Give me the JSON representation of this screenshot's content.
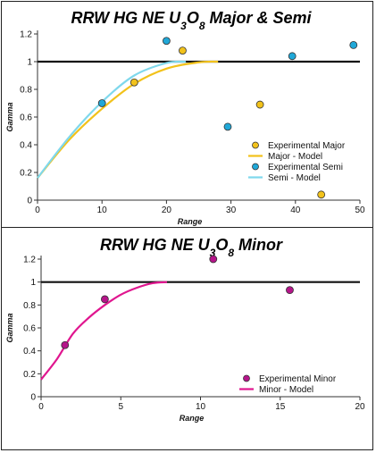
{
  "chart_data": [
    {
      "type": "scatter",
      "title": "RRW HG NE U₃O₈ Major & Semi",
      "xlabel": "Range",
      "ylabel": "Gamma",
      "xlim": [
        0,
        50
      ],
      "ylim": [
        0,
        1.2
      ],
      "xticks": [
        "0",
        "10",
        "20",
        "30",
        "40",
        "50"
      ],
      "yticks": [
        "0",
        "0.2",
        "0.4",
        "0.6",
        "0.8",
        "1",
        "1.2"
      ],
      "sill": 1,
      "legend_position": "lower-right",
      "series": [
        {
          "name": "Experimental Major",
          "kind": "points",
          "color": "#f2c21b",
          "x": [
            15,
            22.5,
            34.5,
            44
          ],
          "y": [
            0.85,
            1.08,
            0.69,
            0.04
          ]
        },
        {
          "name": "Major - Model",
          "kind": "line",
          "color": "#f2c21b",
          "x": [
            0,
            5,
            10,
            15,
            20,
            25,
            28
          ],
          "y": [
            0.16,
            0.44,
            0.66,
            0.84,
            0.95,
            0.995,
            1.0
          ]
        },
        {
          "name": "Experimental Semi",
          "kind": "points",
          "color": "#20a8d8",
          "x": [
            10,
            20,
            29.5,
            39.5,
            49
          ],
          "y": [
            0.7,
            1.15,
            0.53,
            1.04,
            1.12
          ]
        },
        {
          "name": "Semi - Model",
          "kind": "line",
          "color": "#7fd8ec",
          "x": [
            0,
            5,
            10,
            15,
            20,
            23
          ],
          "y": [
            0.16,
            0.46,
            0.71,
            0.9,
            0.99,
            1.0
          ]
        }
      ]
    },
    {
      "type": "scatter",
      "title": "RRW HG NE U₃O₈ Minor",
      "xlabel": "Range",
      "ylabel": "Gamma",
      "xlim": [
        0,
        20
      ],
      "ylim": [
        0,
        1.2
      ],
      "xticks": [
        "0",
        "5",
        "10",
        "15",
        "20"
      ],
      "yticks": [
        "0",
        "0.2",
        "0.4",
        "0.6",
        "0.8",
        "1",
        "1.2"
      ],
      "sill": 1,
      "legend_position": "lower-right",
      "series": [
        {
          "name": "Experimental Minor",
          "kind": "points",
          "color": "#b5158a",
          "x": [
            1.5,
            4.0,
            10.8,
            15.6
          ],
          "y": [
            0.45,
            0.85,
            1.2,
            0.93
          ]
        },
        {
          "name": "Minor - Model",
          "kind": "line",
          "color": "#e0168f",
          "x": [
            0,
            1,
            2,
            3,
            4,
            5,
            6,
            7,
            7.9
          ],
          "y": [
            0.15,
            0.33,
            0.55,
            0.69,
            0.8,
            0.89,
            0.95,
            0.99,
            1.0
          ]
        }
      ]
    }
  ]
}
